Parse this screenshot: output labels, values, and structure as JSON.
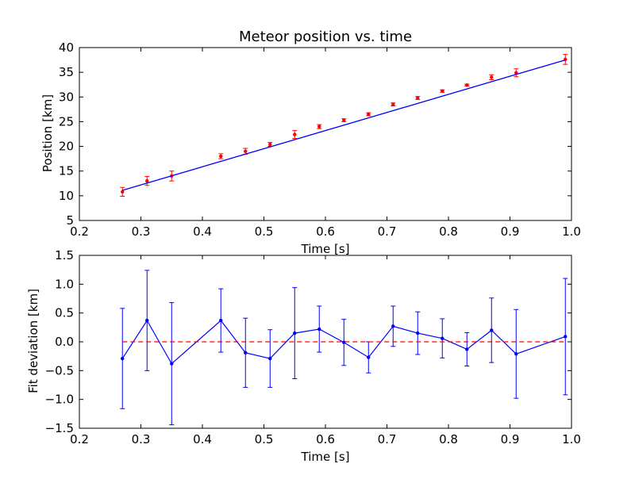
{
  "chart_data": [
    {
      "type": "scatter",
      "title": "Meteor position vs. time",
      "xlabel": "Time [s]",
      "ylabel": "Position [km]",
      "xlim": [
        0.2,
        1.0
      ],
      "ylim": [
        5,
        40
      ],
      "xticks": [
        "0.2",
        "0.3",
        "0.4",
        "0.5",
        "0.6",
        "0.7",
        "0.8",
        "0.9",
        "1.0"
      ],
      "yticks": [
        "5",
        "10",
        "15",
        "20",
        "25",
        "30",
        "35",
        "40"
      ],
      "grid": false,
      "series": [
        {
          "kind": "errorbar",
          "color": "#ff0000",
          "x": [
            0.27,
            0.31,
            0.35,
            0.43,
            0.47,
            0.51,
            0.55,
            0.59,
            0.63,
            0.67,
            0.71,
            0.75,
            0.79,
            0.83,
            0.87,
            0.91,
            0.99
          ],
          "y": [
            10.8,
            13.0,
            14.0,
            18.0,
            19.0,
            20.4,
            22.4,
            24.0,
            25.3,
            26.5,
            28.5,
            29.8,
            31.2,
            32.4,
            34.0,
            34.9,
            37.6
          ],
          "yerr": [
            0.9,
            0.9,
            1.0,
            0.5,
            0.6,
            0.4,
            0.8,
            0.4,
            0.3,
            0.3,
            0.3,
            0.3,
            0.25,
            0.2,
            0.5,
            0.8,
            1.0
          ]
        },
        {
          "kind": "line",
          "color": "#0000ff",
          "x": [
            0.27,
            0.99
          ],
          "y": [
            11.1,
            37.5
          ]
        }
      ]
    },
    {
      "type": "line",
      "title": "",
      "xlabel": "Time [s]",
      "ylabel": "Fit deviation [km]",
      "xlim": [
        0.2,
        1.0
      ],
      "ylim": [
        -1.5,
        1.5
      ],
      "xticks": [
        "0.2",
        "0.3",
        "0.4",
        "0.5",
        "0.6",
        "0.7",
        "0.8",
        "0.9",
        "1.0"
      ],
      "yticks": [
        "−1.5",
        "−1.0",
        "−0.5",
        "0.0",
        "0.5",
        "1.0",
        "1.5"
      ],
      "grid": false,
      "series": [
        {
          "kind": "errorbar-line",
          "color": "#0000ff",
          "x": [
            0.27,
            0.31,
            0.35,
            0.43,
            0.47,
            0.51,
            0.55,
            0.59,
            0.63,
            0.67,
            0.71,
            0.75,
            0.79,
            0.83,
            0.87,
            0.91,
            0.99
          ],
          "y": [
            -0.29,
            0.37,
            -0.38,
            0.37,
            -0.19,
            -0.29,
            0.15,
            0.22,
            -0.01,
            -0.27,
            0.27,
            0.15,
            0.06,
            -0.13,
            0.2,
            -0.21,
            0.09
          ],
          "yerr": [
            0.87,
            0.87,
            1.06,
            0.55,
            0.6,
            0.5,
            0.79,
            0.4,
            0.4,
            0.27,
            0.35,
            0.37,
            0.34,
            0.29,
            0.56,
            0.77,
            1.01
          ]
        },
        {
          "kind": "reference-line",
          "color": "#ff0000",
          "style": "dashed",
          "x": [
            0.27,
            0.99
          ],
          "y": [
            0.0,
            0.0
          ]
        }
      ]
    }
  ]
}
